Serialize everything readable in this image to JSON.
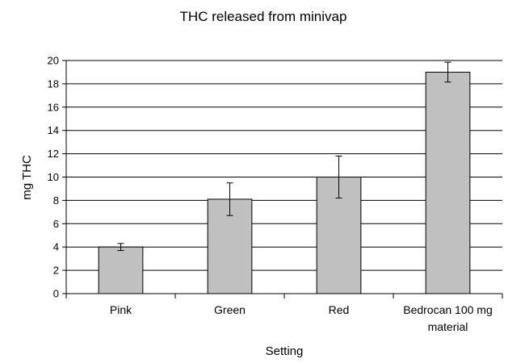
{
  "chart_data": {
    "type": "bar",
    "title": "THC released from minivap",
    "xlabel": "Setting",
    "ylabel": "mg THC",
    "categories": [
      [
        "Pink"
      ],
      [
        "Green"
      ],
      [
        "Red"
      ],
      [
        "Bedrocan 100 mg",
        "material"
      ]
    ],
    "series": [
      {
        "values": [
          4.0,
          8.1,
          10.0,
          19.0
        ],
        "error": [
          0.3,
          1.4,
          1.8,
          0.85
        ],
        "color": "#c0c0c0"
      }
    ],
    "ylim": [
      0,
      20
    ],
    "yticks": [
      0,
      2,
      4,
      6,
      8,
      10,
      12,
      14,
      16,
      18,
      20
    ],
    "grid": true,
    "legend": "none"
  }
}
